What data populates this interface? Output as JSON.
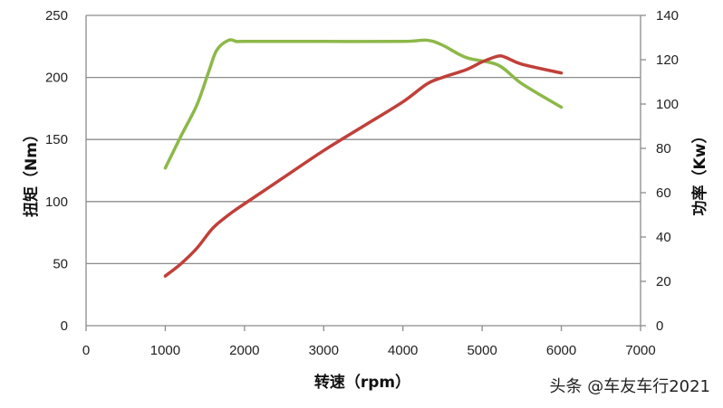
{
  "chart_data": {
    "type": "line",
    "title": "",
    "xlabel": "转速（rpm）",
    "ylabel": "扭矩（Nm）",
    "y2label": "功率（Kw）",
    "xlim": [
      0,
      7000
    ],
    "ylim": [
      0,
      250
    ],
    "y2lim": [
      0,
      140
    ],
    "x_ticks": [
      0,
      1000,
      2000,
      3000,
      4000,
      5000,
      6000,
      7000
    ],
    "y_ticks": [
      0,
      50,
      100,
      150,
      200,
      250
    ],
    "y2_ticks": [
      0,
      20,
      40,
      60,
      80,
      100,
      120,
      140
    ],
    "grid": "horizontal",
    "legend": null,
    "series": [
      {
        "name": "扭矩",
        "axis": "left",
        "color": "#8cb849",
        "x": [
          1000,
          1200,
          1400,
          1550,
          1650,
          1800,
          1900,
          2000,
          3000,
          4000,
          4300,
          4500,
          4800,
          5200,
          5500,
          6000
        ],
        "values": [
          127,
          153,
          178,
          205,
          222,
          230,
          229,
          229,
          229,
          229,
          230,
          226,
          216,
          210,
          195,
          176
        ]
      },
      {
        "name": "功率",
        "axis": "right",
        "color": "#c0403a",
        "x": [
          1000,
          1200,
          1400,
          1600,
          1800,
          2000,
          2500,
          3000,
          3500,
          4000,
          4300,
          4500,
          4800,
          5000,
          5200,
          5300,
          5500,
          6000
        ],
        "values": [
          22.4,
          28,
          35,
          44,
          50,
          55,
          67,
          79,
          90,
          101,
          109,
          112,
          115.5,
          119,
          121.6,
          121,
          118,
          114
        ]
      }
    ]
  },
  "watermark": "头条 @车友车行2021"
}
